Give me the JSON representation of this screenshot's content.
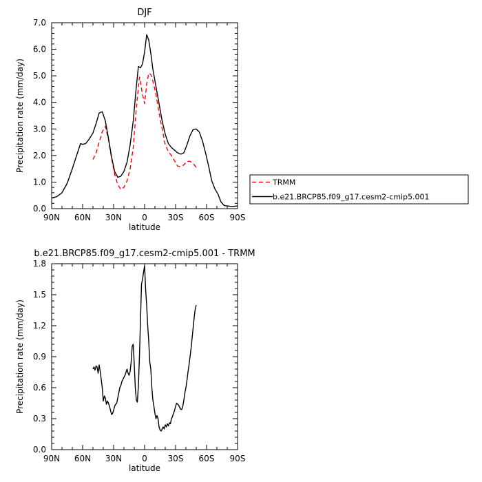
{
  "chart_data": [
    {
      "type": "line",
      "title": "DJF",
      "xlabel": "latitude",
      "ylabel": "Precipitation rate (mm/day)",
      "xlim": [
        90,
        -90
      ],
      "ylim": [
        0,
        7
      ],
      "x_ticks": [
        90,
        60,
        30,
        0,
        -30,
        -60,
        -90
      ],
      "x_tick_labels": [
        "90N",
        "60N",
        "30N",
        "0",
        "30S",
        "60S",
        "90S"
      ],
      "y_ticks": [
        0,
        1,
        2,
        3,
        4,
        5,
        6,
        7
      ],
      "y_tick_labels": [
        "0.0",
        "1.0",
        "2.0",
        "3.0",
        "4.0",
        "5.0",
        "6.0",
        "7.0"
      ],
      "legend": {
        "placement": "right",
        "entries": [
          "TRMM",
          "b.e21.BRCP85.f09_g17.cesm2-cmip5.001"
        ]
      },
      "series": [
        {
          "name": "TRMM",
          "color": "#ff0000",
          "dash": "dashed",
          "x": [
            50,
            47,
            44,
            41,
            38,
            35,
            32,
            29,
            26,
            23,
            20,
            17,
            14,
            11,
            8,
            5,
            2,
            0,
            -2,
            -4,
            -6,
            -8,
            -11,
            -14,
            -17,
            -20,
            -23,
            -26,
            -29,
            -32,
            -35,
            -38,
            -41,
            -44,
            -47,
            -50
          ],
          "y": [
            1.85,
            2.1,
            2.5,
            2.9,
            3.1,
            2.6,
            1.9,
            1.3,
            0.9,
            0.72,
            0.8,
            1.05,
            1.5,
            2.3,
            3.8,
            4.95,
            4.3,
            3.95,
            4.7,
            5.1,
            5.05,
            4.8,
            4.3,
            3.6,
            3.0,
            2.4,
            2.15,
            2.0,
            1.8,
            1.6,
            1.58,
            1.65,
            1.78,
            1.78,
            1.7,
            1.55
          ]
        },
        {
          "name": "b.e21.BRCP85.f09_g17.cesm2-cmip5.001",
          "color": "#000000",
          "dash": "solid",
          "x": [
            90,
            85,
            80,
            75,
            70,
            65,
            62,
            60,
            57,
            54,
            50,
            47,
            44,
            41,
            38,
            35,
            32,
            29,
            26,
            23,
            20,
            17,
            14,
            11,
            8,
            6,
            4,
            2,
            0,
            -2,
            -4,
            -6,
            -8,
            -11,
            -14,
            -17,
            -20,
            -23,
            -26,
            -29,
            -32,
            -35,
            -38,
            -41,
            -44,
            -47,
            -50,
            -53,
            -56,
            -59,
            -62,
            -65,
            -68,
            -71,
            -74,
            -77,
            -80,
            -85,
            -90
          ],
          "y": [
            0.4,
            0.45,
            0.6,
            0.95,
            1.5,
            2.1,
            2.45,
            2.42,
            2.45,
            2.6,
            2.85,
            3.2,
            3.6,
            3.65,
            3.3,
            2.65,
            1.95,
            1.4,
            1.18,
            1.22,
            1.4,
            1.75,
            2.4,
            3.3,
            4.6,
            5.35,
            5.3,
            5.45,
            5.9,
            6.55,
            6.35,
            5.85,
            5.25,
            4.6,
            3.95,
            3.3,
            2.8,
            2.45,
            2.3,
            2.2,
            2.1,
            2.05,
            2.1,
            2.4,
            2.75,
            2.98,
            3.0,
            2.88,
            2.55,
            2.1,
            1.6,
            1.05,
            0.75,
            0.55,
            0.25,
            0.12,
            0.1,
            0.08,
            0.1
          ]
        }
      ]
    },
    {
      "type": "line",
      "title": "b.e21.BRCP85.f09_g17.cesm2-cmip5.001 - TRMM",
      "xlabel": "latitude",
      "ylabel": "Precipitation rate (mm/day)",
      "xlim": [
        90,
        -90
      ],
      "ylim": [
        0,
        1.8
      ],
      "x_ticks": [
        90,
        60,
        30,
        0,
        -30,
        -60,
        -90
      ],
      "x_tick_labels": [
        "90N",
        "60N",
        "30N",
        "0",
        "30S",
        "60S",
        "90S"
      ],
      "y_ticks": [
        0,
        0.3,
        0.6,
        0.9,
        1.2,
        1.5,
        1.8
      ],
      "y_tick_labels": [
        "0.0",
        "0.3",
        "0.6",
        "0.9",
        "1.2",
        "1.5",
        "1.8"
      ],
      "series": [
        {
          "color": "#000000",
          "dash": "solid",
          "x": [
            50,
            49,
            48,
            47,
            46,
            45,
            44,
            43,
            42,
            41,
            40,
            39,
            38,
            37,
            36,
            35,
            34,
            33,
            32,
            31,
            30,
            29,
            28,
            27,
            26,
            25,
            24,
            23,
            22,
            21,
            20,
            19,
            18,
            17,
            16,
            15,
            14,
            13,
            12,
            11,
            10,
            9,
            8,
            7,
            6,
            5,
            4,
            3,
            2,
            1,
            0,
            -1,
            -2,
            -3,
            -4,
            -5,
            -6,
            -7,
            -8,
            -9,
            -10,
            -11,
            -12,
            -13,
            -14,
            -15,
            -16,
            -17,
            -18,
            -19,
            -20,
            -21,
            -22,
            -23,
            -24,
            -25,
            -26,
            -27,
            -28,
            -29,
            -30,
            -31,
            -32,
            -33,
            -34,
            -35,
            -36,
            -37,
            -38,
            -39,
            -40,
            -41,
            -42,
            -43,
            -44,
            -45,
            -46,
            -47,
            -48,
            -49,
            -50
          ],
          "y": [
            0.78,
            0.8,
            0.77,
            0.81,
            0.8,
            0.74,
            0.82,
            0.76,
            0.68,
            0.6,
            0.47,
            0.52,
            0.5,
            0.44,
            0.47,
            0.45,
            0.42,
            0.38,
            0.34,
            0.35,
            0.38,
            0.42,
            0.44,
            0.45,
            0.5,
            0.55,
            0.6,
            0.62,
            0.66,
            0.68,
            0.7,
            0.72,
            0.75,
            0.78,
            0.74,
            0.72,
            0.76,
            0.85,
            1.0,
            1.02,
            0.82,
            0.6,
            0.48,
            0.46,
            0.62,
            0.9,
            1.25,
            1.6,
            1.65,
            1.72,
            1.78,
            1.55,
            1.4,
            1.2,
            1.05,
            0.85,
            0.78,
            0.6,
            0.48,
            0.42,
            0.35,
            0.3,
            0.33,
            0.3,
            0.22,
            0.19,
            0.18,
            0.2,
            0.22,
            0.2,
            0.24,
            0.22,
            0.25,
            0.23,
            0.26,
            0.25,
            0.3,
            0.32,
            0.35,
            0.38,
            0.42,
            0.45,
            0.44,
            0.43,
            0.41,
            0.39,
            0.39,
            0.42,
            0.48,
            0.55,
            0.6,
            0.67,
            0.75,
            0.82,
            0.9,
            0.98,
            1.08,
            1.18,
            1.28,
            1.36,
            1.4
          ]
        }
      ]
    }
  ]
}
